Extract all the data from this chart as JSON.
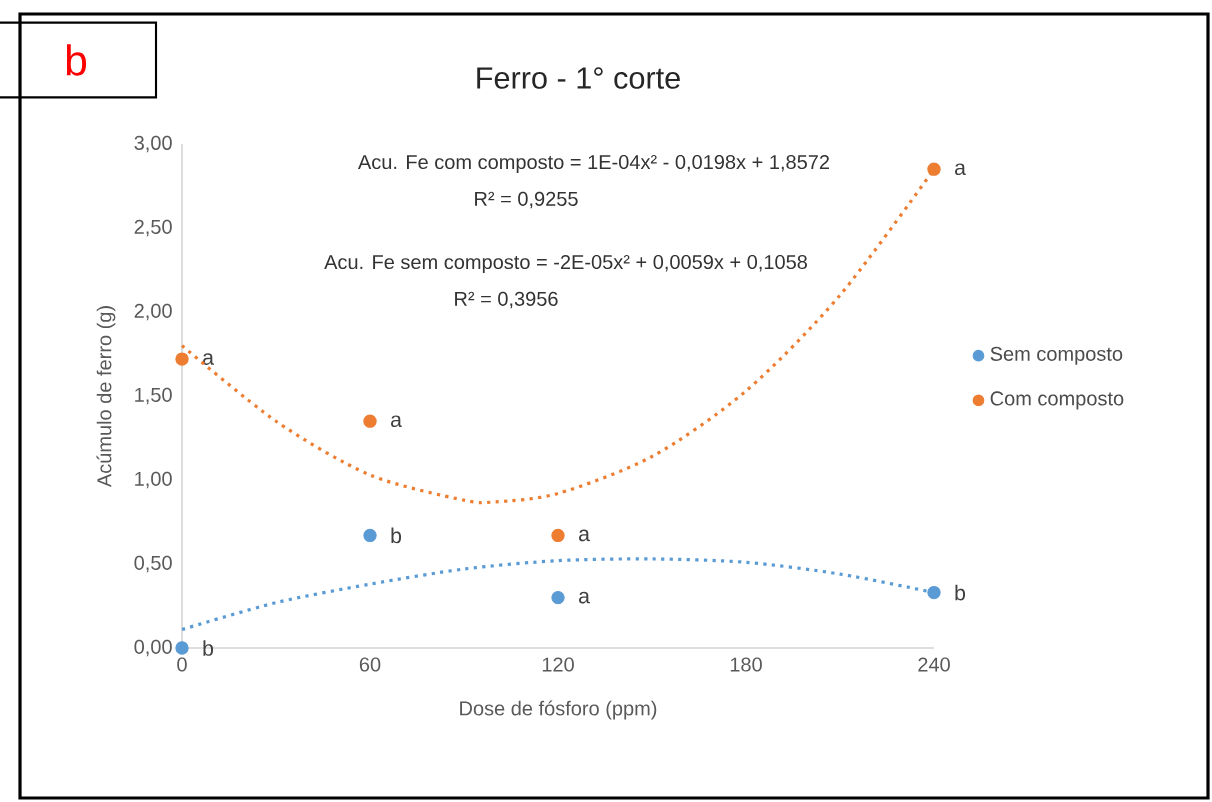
{
  "chart_data": {
    "type": "scatter",
    "title": "Ferro - 1° corte",
    "xlabel": "Dose de fósforo (ppm)",
    "ylabel": "Acúmulo de ferro (g)",
    "annotations": [
      "b",
      "Acu.  Fe com composto   = 1E-04x² - 0,0198x + 1,8572",
      "R² = 0,9255",
      "Acu.  Fe sem composto   = -2E-05x² + 0,0059x + 0,1058",
      "R² = 0,3956"
    ],
    "x": [
      0,
      60,
      120,
      240
    ],
    "series": [
      {
        "name": "Sem composto",
        "color": "#5b9bd5",
        "values": [
          0,
          0.67,
          0.3,
          0.33
        ],
        "value_labels": [
          "b",
          "b",
          "a",
          "b"
        ],
        "marker": "circle"
      },
      {
        "name": "Com composto",
        "color": "#ed7d31",
        "values": [
          1.72,
          1.35,
          0.67,
          2.85
        ],
        "value_labels": [
          "a",
          "a",
          "a",
          "a"
        ],
        "marker": "circle"
      },
      {
        "type": "line",
        "color": "#5b9bd5",
        "line_style": "dotted",
        "marker": "none",
        "x": [
          0,
          30,
          60,
          90,
          120,
          150,
          180,
          210,
          240
        ],
        "values": [
          0.11,
          0.27,
          0.38,
          0.47,
          0.52,
          0.53,
          0.51,
          0.44,
          0.33
        ]
      },
      {
        "type": "line",
        "color": "#ed7d31",
        "line_style": "dotted",
        "marker": "none",
        "x": [
          0,
          30,
          60,
          90,
          100,
          120,
          150,
          180,
          210,
          240
        ],
        "values": [
          1.8,
          1.35,
          1.03,
          0.88,
          0.87,
          0.92,
          1.14,
          1.53,
          2.1,
          2.85
        ]
      }
    ],
    "xlim": [
      0,
      240
    ],
    "xticks": [
      0,
      60,
      120,
      180,
      240
    ],
    "ylim": [
      0,
      3
    ],
    "yticks": [
      {
        "value": 0,
        "label": "0,00"
      },
      {
        "value": 0.5,
        "label": "0,50"
      },
      {
        "value": 1,
        "label": "1,00"
      },
      {
        "value": 1.5,
        "label": "1,50"
      },
      {
        "value": 2,
        "label": "2,00"
      },
      {
        "value": 2.5,
        "label": "2,50"
      },
      {
        "value": 3,
        "label": "3,00"
      }
    ],
    "grid": false,
    "legend": "right"
  }
}
